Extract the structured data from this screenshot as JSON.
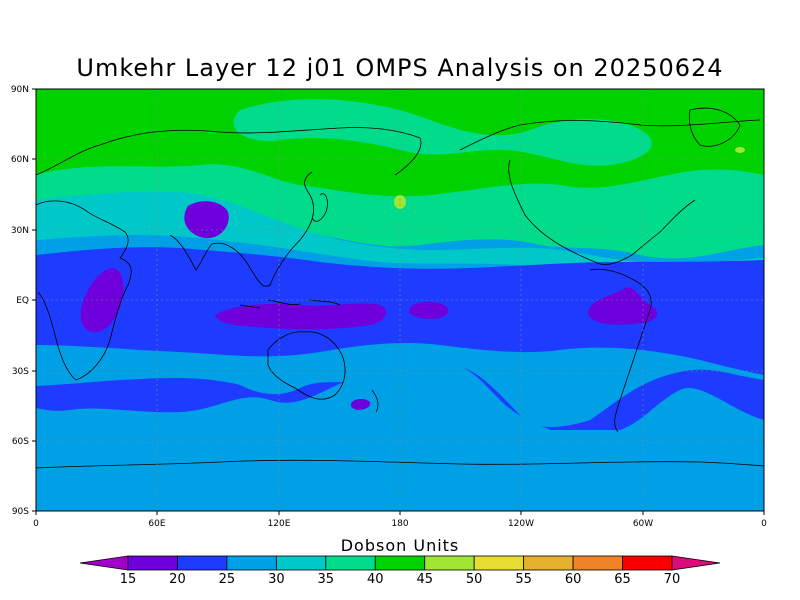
{
  "title": "Umkehr Layer 12 j01 OMPS Analysis on 20250624",
  "map": {
    "lat_labels": [
      "90N",
      "60N",
      "30N",
      "EQ",
      "30S",
      "60S",
      "90S"
    ],
    "lon_labels": [
      "0",
      "60E",
      "120E",
      "180",
      "120W",
      "60W",
      "0"
    ]
  },
  "colorbar": {
    "label": "Dobson Units",
    "ticks": [
      "15",
      "20",
      "25",
      "30",
      "35",
      "40",
      "45",
      "50",
      "55",
      "60",
      "65",
      "70"
    ],
    "colors": [
      "#a000c8",
      "#6e00dc",
      "#1e3cff",
      "#00a0e6",
      "#00c8c8",
      "#00dc8c",
      "#00d200",
      "#a0e632",
      "#e6dc32",
      "#e6af2d",
      "#f08228",
      "#fa0000",
      "#dc0a7a"
    ]
  },
  "colors": {
    "ocean_band_low": "#00a0e6",
    "tropics": "#1e3cff",
    "minimum": "#6e00dc",
    "midlat": "#00c8c8",
    "high_lat": "#00dc8c",
    "arctic": "#00d200"
  }
}
